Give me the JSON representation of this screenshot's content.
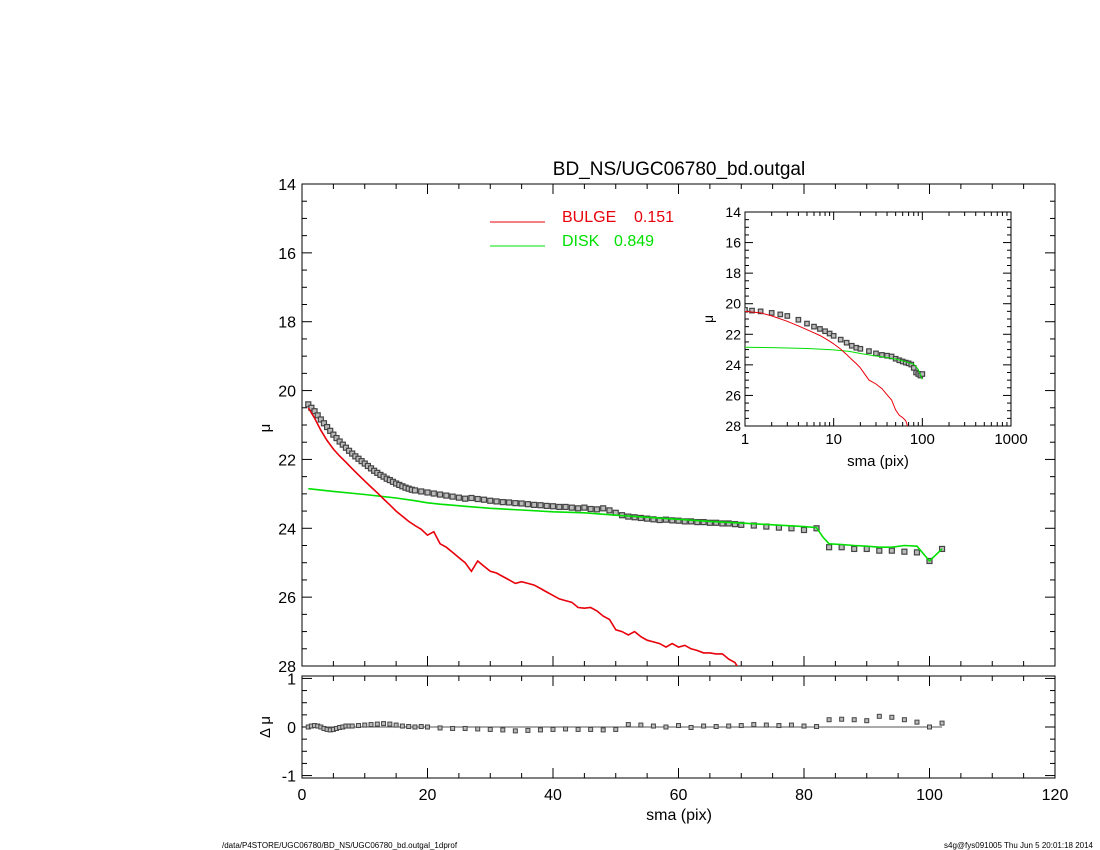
{
  "footer": {
    "left": "/data/P4STORE/UGC06780/BD_NS/UGC06780_bd.outgal_1dprof",
    "right": "s4g@fys091005  Thu Jun  5 20:01:18 2014"
  },
  "chart_data": [
    {
      "id": "main",
      "type": "line",
      "title": "BD_NS/UGC06780_bd.outgal",
      "xlabel": "",
      "ylabel": "μ",
      "xlim": [
        0,
        120
      ],
      "ylim": [
        28,
        14
      ],
      "y_inverted": true,
      "yticks": [
        14,
        16,
        18,
        20,
        22,
        24,
        26,
        28
      ],
      "legend": {
        "placement": "top-center",
        "entries": [
          {
            "label": "BULGE",
            "value": "0.151",
            "color": "#e8000b"
          },
          {
            "label": "DISK",
            "value": "0.849",
            "color": "#00e000"
          }
        ]
      },
      "series": [
        {
          "name": "data",
          "style": "squares",
          "color": "#444444",
          "x": [
            1,
            1.5,
            2,
            2.5,
            3,
            3.5,
            4,
            4.5,
            5,
            5.5,
            6,
            6.5,
            7,
            7.5,
            8,
            8.5,
            9,
            9.5,
            10,
            10.5,
            11,
            11.5,
            12,
            12.5,
            13,
            13.5,
            14,
            14.5,
            15,
            15.5,
            16,
            16.5,
            17,
            17.5,
            18,
            19,
            20,
            21,
            22,
            23,
            24,
            25,
            26,
            27,
            28,
            29,
            30,
            31,
            32,
            33,
            34,
            35,
            36,
            37,
            38,
            39,
            40,
            41,
            42,
            43,
            44,
            45,
            46,
            47,
            48,
            49,
            50,
            51,
            52,
            53,
            54,
            55,
            56,
            57,
            58,
            59,
            60,
            61,
            62,
            63,
            64,
            65,
            66,
            67,
            68,
            69,
            70,
            72,
            74,
            76,
            78,
            80,
            82,
            84,
            86,
            88,
            90,
            92,
            94,
            96,
            98,
            100,
            102
          ],
          "y": [
            20.4,
            20.5,
            20.6,
            20.72,
            20.84,
            20.95,
            21.06,
            21.17,
            21.28,
            21.38,
            21.48,
            21.57,
            21.66,
            21.75,
            21.83,
            21.91,
            21.98,
            22.05,
            22.12,
            22.19,
            22.26,
            22.33,
            22.39,
            22.45,
            22.5,
            22.56,
            22.6,
            22.65,
            22.7,
            22.74,
            22.78,
            22.82,
            22.85,
            22.88,
            22.9,
            22.93,
            22.96,
            22.99,
            23.02,
            23.05,
            23.08,
            23.11,
            23.14,
            23.12,
            23.15,
            23.17,
            23.2,
            23.22,
            23.24,
            23.25,
            23.27,
            23.28,
            23.3,
            23.32,
            23.33,
            23.35,
            23.36,
            23.38,
            23.38,
            23.4,
            23.42,
            23.4,
            23.44,
            23.45,
            23.42,
            23.48,
            23.55,
            23.62,
            23.66,
            23.68,
            23.7,
            23.72,
            23.74,
            23.76,
            23.75,
            23.77,
            23.78,
            23.8,
            23.8,
            23.82,
            23.82,
            23.84,
            23.84,
            23.86,
            23.86,
            23.88,
            23.9,
            23.92,
            23.95,
            23.98,
            24.0,
            24.05,
            24.0,
            24.55,
            24.55,
            24.6,
            24.6,
            24.65,
            24.65,
            24.68,
            24.7,
            24.95,
            24.6
          ]
        },
        {
          "name": "BULGE",
          "style": "line",
          "color": "#e8000b",
          "x": [
            1,
            2,
            3,
            4,
            5,
            6,
            7,
            8,
            9,
            10,
            11,
            12,
            13,
            14,
            15,
            16,
            17,
            18,
            19,
            20,
            21,
            22,
            23,
            24,
            25,
            26,
            27,
            28,
            29,
            30,
            31,
            32,
            33,
            34,
            35,
            36,
            37,
            38,
            39,
            40,
            41,
            42,
            43,
            44,
            45,
            46,
            47,
            48,
            49,
            50,
            51,
            52,
            53,
            54,
            55,
            56,
            57,
            58,
            59,
            60,
            61,
            62,
            63,
            64,
            65,
            66,
            67,
            68,
            69,
            70
          ],
          "y": [
            20.5,
            20.8,
            21.15,
            21.45,
            21.7,
            21.9,
            22.08,
            22.27,
            22.45,
            22.63,
            22.8,
            22.97,
            23.15,
            23.32,
            23.5,
            23.65,
            23.8,
            23.92,
            24.03,
            24.2,
            24.1,
            24.45,
            24.55,
            24.7,
            24.85,
            25.0,
            25.25,
            24.95,
            25.1,
            25.25,
            25.3,
            25.4,
            25.5,
            25.6,
            25.55,
            25.6,
            25.65,
            25.75,
            25.85,
            25.95,
            26.05,
            26.1,
            26.15,
            26.3,
            26.32,
            26.3,
            26.4,
            26.55,
            26.65,
            26.95,
            27.0,
            27.1,
            27.0,
            27.15,
            27.25,
            27.3,
            27.35,
            27.45,
            27.35,
            27.45,
            27.4,
            27.5,
            27.55,
            27.62,
            27.62,
            27.65,
            27.65,
            27.8,
            27.9,
            28.2
          ]
        },
        {
          "name": "DISK",
          "style": "line",
          "color": "#00e000",
          "x": [
            1,
            5,
            10,
            15,
            18,
            20,
            22,
            24,
            26,
            28,
            30,
            35,
            40,
            45,
            50,
            55,
            60,
            65,
            70,
            75,
            80,
            82,
            83,
            84,
            86,
            88,
            90,
            92,
            94,
            96,
            98,
            100,
            102
          ],
          "y": [
            22.85,
            22.93,
            23.02,
            23.12,
            23.2,
            23.26,
            23.3,
            23.33,
            23.36,
            23.39,
            23.42,
            23.47,
            23.52,
            23.55,
            23.62,
            23.68,
            23.74,
            23.8,
            23.85,
            23.9,
            23.95,
            23.98,
            24.25,
            24.45,
            24.47,
            24.5,
            24.52,
            24.55,
            24.55,
            24.5,
            24.52,
            24.95,
            24.6
          ]
        }
      ]
    },
    {
      "id": "inset",
      "type": "line",
      "xlabel": "sma (pix)",
      "ylabel": "μ",
      "xscale": "log",
      "xlim": [
        1,
        1000
      ],
      "ylim": [
        28,
        14
      ],
      "y_inverted": true,
      "xticks": [
        "1",
        "10",
        "100",
        "1000"
      ],
      "yticks": [
        14,
        16,
        18,
        20,
        22,
        24,
        26,
        28
      ],
      "series": [
        {
          "name": "data",
          "style": "squares",
          "color": "#444444",
          "x": [
            1,
            1.2,
            1.5,
            2,
            2.5,
            3,
            4,
            5,
            6,
            7,
            8,
            9,
            10,
            12,
            14,
            16,
            18,
            20,
            25,
            30,
            35,
            40,
            45,
            50,
            55,
            60,
            65,
            70,
            75,
            80,
            85,
            90,
            95,
            100
          ],
          "y": [
            20.4,
            20.45,
            20.5,
            20.6,
            20.7,
            20.8,
            21.05,
            21.3,
            21.5,
            21.65,
            21.8,
            21.95,
            22.1,
            22.35,
            22.55,
            22.75,
            22.88,
            22.95,
            23.1,
            23.25,
            23.35,
            23.4,
            23.45,
            23.6,
            23.7,
            23.78,
            23.85,
            23.9,
            23.98,
            24.2,
            24.5,
            24.6,
            24.7,
            24.6
          ]
        },
        {
          "name": "BULGE",
          "style": "line",
          "color": "#e8000b",
          "x": [
            1,
            1.5,
            2,
            3,
            4,
            5,
            6,
            7,
            8,
            9,
            10,
            12,
            14,
            16,
            18,
            20,
            25,
            30,
            35,
            40,
            45,
            50,
            55,
            60,
            65,
            70
          ],
          "y": [
            20.5,
            20.6,
            20.8,
            21.15,
            21.45,
            21.7,
            21.9,
            22.08,
            22.27,
            22.45,
            22.63,
            22.97,
            23.32,
            23.65,
            23.92,
            24.2,
            25.0,
            25.25,
            25.55,
            25.95,
            26.3,
            26.95,
            27.3,
            27.45,
            27.65,
            28.2
          ]
        },
        {
          "name": "DISK",
          "style": "line",
          "color": "#00e000",
          "x": [
            1,
            2,
            3,
            5,
            7,
            10,
            15,
            20,
            30,
            40,
            50,
            60,
            70,
            80,
            90,
            100
          ],
          "y": [
            22.85,
            22.87,
            22.9,
            22.93,
            22.97,
            23.02,
            23.12,
            23.26,
            23.42,
            23.52,
            23.62,
            23.74,
            23.85,
            23.95,
            24.3,
            24.95
          ]
        }
      ]
    },
    {
      "id": "residual",
      "type": "scatter",
      "xlabel": "sma (pix)",
      "ylabel": "Δ μ",
      "xlim": [
        0,
        120
      ],
      "ylim": [
        -1.05,
        1.05
      ],
      "xticks": [
        0,
        20,
        40,
        60,
        80,
        100,
        120
      ],
      "yticks": [
        -1,
        0,
        1
      ],
      "reference_line": 0,
      "series": [
        {
          "name": "residuals",
          "color": "#444444",
          "x": [
            1,
            1.5,
            2,
            2.5,
            3,
            3.5,
            4,
            4.5,
            5,
            5.5,
            6,
            6.5,
            7,
            7.5,
            8,
            9,
            10,
            11,
            12,
            13,
            14,
            15,
            16,
            17,
            18,
            19,
            20,
            22,
            24,
            26,
            28,
            30,
            32,
            34,
            36,
            38,
            40,
            42,
            44,
            46,
            48,
            50,
            52,
            54,
            56,
            58,
            60,
            62,
            64,
            66,
            68,
            70,
            72,
            74,
            76,
            78,
            80,
            82,
            84,
            86,
            88,
            90,
            92,
            94,
            96,
            98,
            100,
            102
          ],
          "y": [
            0.0,
            0.02,
            0.03,
            0.02,
            0.0,
            -0.03,
            -0.05,
            -0.06,
            -0.05,
            -0.03,
            -0.01,
            0.0,
            0.02,
            0.02,
            0.02,
            0.03,
            0.04,
            0.05,
            0.06,
            0.07,
            0.06,
            0.04,
            0.02,
            0.01,
            0.0,
            0.01,
            0.0,
            -0.02,
            -0.03,
            -0.03,
            -0.04,
            -0.05,
            -0.06,
            -0.08,
            -0.07,
            -0.06,
            -0.05,
            -0.04,
            -0.05,
            -0.05,
            -0.06,
            -0.05,
            0.05,
            0.04,
            0.02,
            0.0,
            0.03,
            -0.01,
            0.02,
            0.01,
            0.02,
            0.03,
            0.05,
            0.04,
            0.03,
            0.04,
            0.02,
            0.01,
            0.15,
            0.16,
            0.15,
            0.13,
            0.22,
            0.2,
            0.15,
            0.1,
            0.0,
            0.08
          ]
        }
      ]
    }
  ]
}
